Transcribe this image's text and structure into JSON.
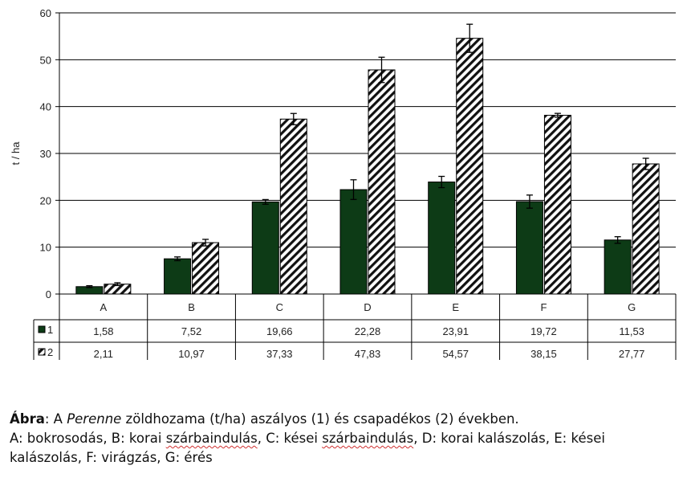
{
  "chart_data": {
    "type": "bar",
    "ylabel": "t / ha",
    "ylim": [
      0,
      60
    ],
    "yticks": [
      "0",
      "10",
      "20",
      "30",
      "40",
      "50",
      "60"
    ],
    "grid": true,
    "categories": [
      "A",
      "B",
      "C",
      "D",
      "E",
      "F",
      "G"
    ],
    "series": [
      {
        "name": "1",
        "values": [
          1.58,
          7.52,
          19.66,
          22.28,
          23.91,
          19.72,
          11.53
        ],
        "labels": [
          "1,58",
          "7,52",
          "19,66",
          "22,28",
          "23,91",
          "19,72",
          "11,53"
        ],
        "errors": [
          0.2,
          0.4,
          0.5,
          2.1,
          1.2,
          1.4,
          0.7
        ],
        "fill": "#0d3b16",
        "pattern": "solid"
      },
      {
        "name": "2",
        "values": [
          2.11,
          10.97,
          37.33,
          47.83,
          54.57,
          38.15,
          27.77
        ],
        "labels": [
          "2,11",
          "10,97",
          "37,33",
          "47,83",
          "54,57",
          "38,15",
          "27,77"
        ],
        "errors": [
          0.3,
          0.7,
          1.2,
          2.7,
          3.0,
          0.4,
          1.2
        ],
        "fill": "#ffffff",
        "pattern": "diagonal-hatch"
      }
    ],
    "data_table": true
  },
  "caption": {
    "line1_bold": "Ábra",
    "line1_a": ": A ",
    "line1_italic": "Perenne",
    "line1_b": " zöldhozama (t/ha) aszályos (1) és csapadékos (2) években.",
    "line2_a": "A: bokrosodás, B: korai ",
    "line2_w1": "szárbaindulás",
    "line2_b": ", C: kései ",
    "line2_w2": "szárbaindulás",
    "line2_c": ", D: korai kalászolás, E: kései",
    "line3": "kalászolás, F: virágzás, G: érés"
  }
}
